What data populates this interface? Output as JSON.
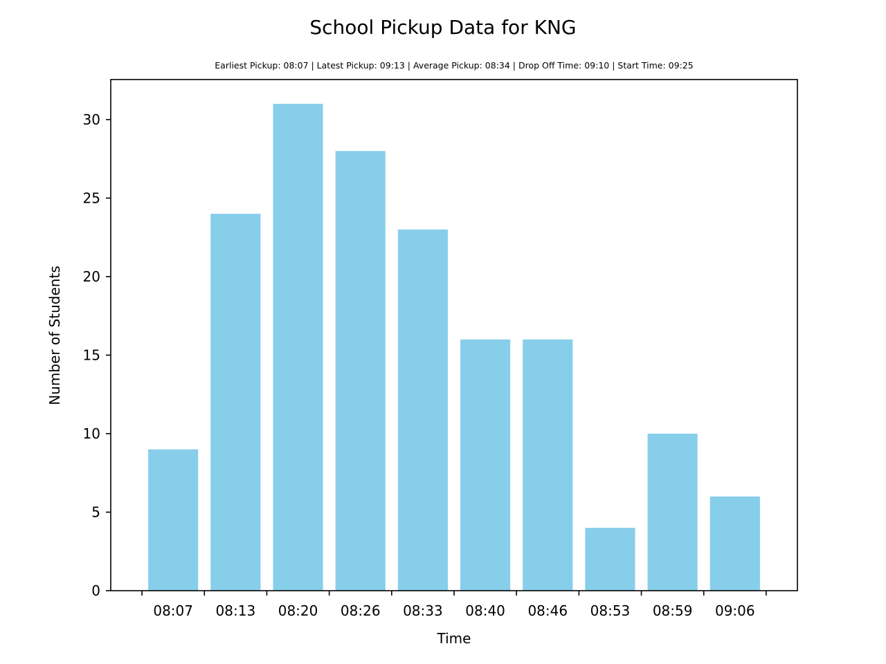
{
  "chart_data": {
    "type": "bar",
    "title": "School Pickup Data for KNG",
    "subtitle": "Earliest Pickup: 08:07 | Latest Pickup: 09:13 | Average Pickup: 08:34 | Drop Off Time: 09:10 | Start Time: 09:25",
    "xlabel": "Time",
    "ylabel": "Number of Students",
    "categories": [
      "08:07",
      "08:13",
      "08:20",
      "08:26",
      "08:33",
      "08:40",
      "08:46",
      "08:53",
      "08:59",
      "09:06"
    ],
    "values": [
      9,
      24,
      31,
      28,
      23,
      16,
      16,
      4,
      10,
      6
    ],
    "ylim": [
      0,
      32.55
    ],
    "yticks": [
      0,
      5,
      10,
      15,
      20,
      25,
      30
    ],
    "grid": false,
    "legend": "none",
    "bar_color": "#87ceeb",
    "axis_color": "#000000"
  }
}
